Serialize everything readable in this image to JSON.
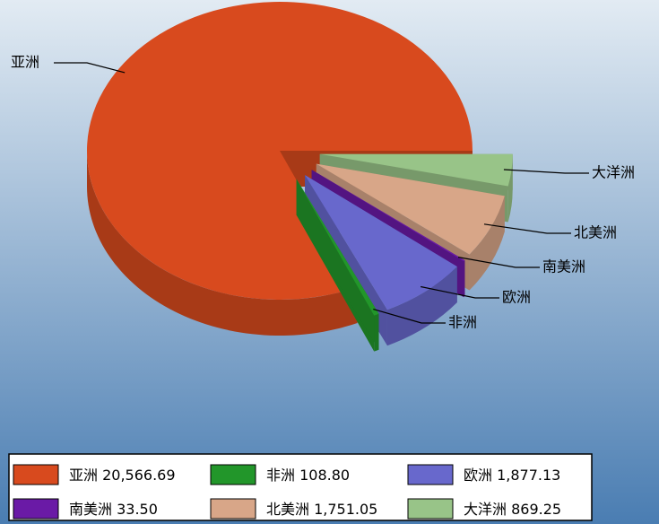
{
  "chart_data": {
    "type": "pie",
    "categories": [
      "亚洲",
      "非洲",
      "欧洲",
      "南美洲",
      "北美洲",
      "大洋洲"
    ],
    "values": [
      20566.69,
      108.8,
      1877.13,
      33.5,
      1751.05,
      869.25
    ],
    "value_labels": [
      "20,566.69",
      "108.80",
      "1,877.13",
      "33.50",
      "1,751.05",
      "869.25"
    ],
    "colors": [
      "#d84a1e",
      "#22962a",
      "#6868cc",
      "#6a1aa6",
      "#d8a688",
      "#98c488"
    ],
    "legend": "bottom"
  }
}
